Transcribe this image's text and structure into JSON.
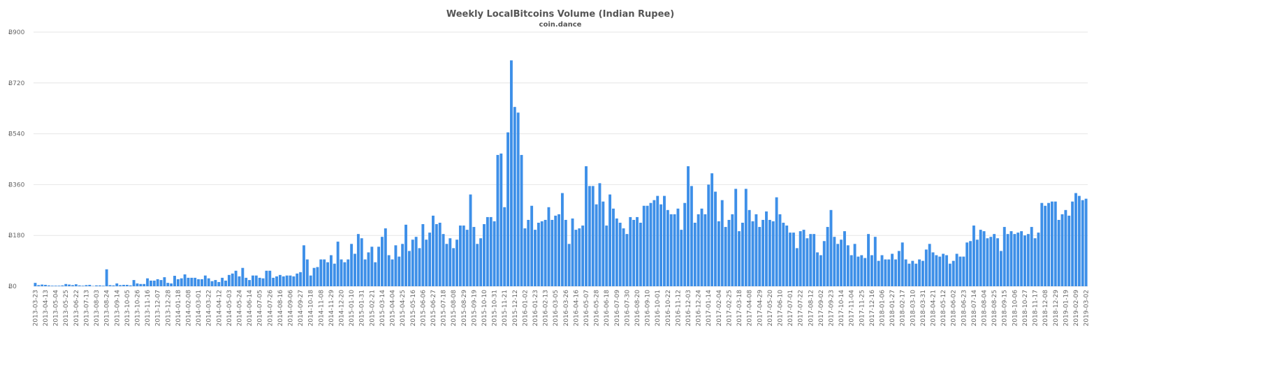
{
  "chart_data": {
    "type": "bar",
    "title": "Weekly LocalBitcoins Volume (Indian Rupee)",
    "subtitle": "coin.dance",
    "color": "#3d8fe8",
    "grid": true,
    "ylim": [
      0,
      900
    ],
    "yticks": [
      {
        "value": 0,
        "label": "Ƀ0"
      },
      {
        "value": 180,
        "label": "Ƀ180"
      },
      {
        "value": 360,
        "label": "Ƀ360"
      },
      {
        "value": 540,
        "label": "Ƀ540"
      },
      {
        "value": 720,
        "label": "Ƀ720"
      },
      {
        "value": 900,
        "label": "Ƀ900"
      }
    ],
    "categories": [
      "2013-03-23",
      null,
      null,
      "2013-04-13",
      null,
      null,
      "2013-05-04",
      null,
      null,
      "2013-05-25",
      null,
      null,
      "2013-06-22",
      null,
      null,
      "2013-07-13",
      null,
      null,
      "2013-08-03",
      null,
      null,
      "2013-08-24",
      null,
      null,
      "2013-09-14",
      null,
      null,
      "2013-10-05",
      null,
      null,
      "2013-10-26",
      null,
      null,
      "2013-11-16",
      null,
      null,
      "2013-12-07",
      null,
      null,
      "2013-12-28",
      null,
      null,
      "2014-01-18",
      null,
      null,
      "2014-02-08",
      null,
      null,
      "2014-03-01",
      null,
      null,
      "2014-03-22",
      null,
      null,
      "2014-04-12",
      null,
      null,
      "2014-05-03",
      null,
      null,
      "2014-05-24",
      null,
      null,
      "2014-06-14",
      null,
      null,
      "2014-07-05",
      null,
      null,
      "2014-07-26",
      null,
      null,
      "2014-08-16",
      null,
      null,
      "2014-09-06",
      null,
      null,
      "2014-09-27",
      null,
      null,
      "2014-10-18",
      null,
      null,
      "2014-11-08",
      null,
      null,
      "2014-11-29",
      null,
      null,
      "2014-12-20",
      null,
      null,
      "2015-01-10",
      null,
      null,
      "2015-01-31",
      null,
      null,
      "2015-02-21",
      null,
      null,
      "2015-03-14",
      null,
      null,
      "2015-04-04",
      null,
      null,
      "2015-04-25",
      null,
      null,
      "2015-05-16",
      null,
      null,
      "2015-06-06",
      null,
      null,
      "2015-06-27",
      null,
      null,
      "2015-07-18",
      null,
      null,
      "2015-08-08",
      null,
      null,
      "2015-08-29",
      null,
      null,
      "2015-09-19",
      null,
      null,
      "2015-10-10",
      null,
      null,
      "2015-10-31",
      null,
      null,
      "2015-11-21",
      null,
      null,
      "2015-12-12",
      null,
      null,
      "2016-01-02",
      null,
      null,
      "2016-01-23",
      null,
      null,
      "2016-02-13",
      null,
      null,
      "2016-03-05",
      null,
      null,
      "2016-03-26",
      null,
      null,
      "2016-04-16",
      null,
      null,
      "2016-05-07",
      null,
      null,
      "2016-05-28",
      null,
      null,
      "2016-06-18",
      null,
      null,
      "2016-07-09",
      null,
      null,
      "2016-07-30",
      null,
      null,
      "2016-08-20",
      null,
      null,
      "2016-09-10",
      null,
      null,
      "2016-10-01",
      null,
      null,
      "2016-10-22",
      null,
      null,
      "2016-11-12",
      null,
      null,
      "2016-12-03",
      null,
      null,
      "2016-12-24",
      null,
      null,
      "2017-01-14",
      null,
      null,
      "2017-02-04",
      null,
      null,
      "2017-02-25",
      null,
      null,
      "2017-03-18",
      null,
      null,
      "2017-04-08",
      null,
      null,
      "2017-04-29",
      null,
      null,
      "2017-05-20",
      null,
      null,
      "2017-06-10",
      null,
      null,
      "2017-07-01",
      null,
      null,
      "2017-07-22",
      null,
      null,
      "2017-08-12",
      null,
      null,
      "2017-09-02",
      null,
      null,
      "2017-09-23",
      null,
      null,
      "2017-10-14",
      null,
      null,
      "2017-11-04",
      null,
      null,
      "2017-11-25",
      null,
      null,
      "2017-12-16",
      null,
      null,
      "2018-01-06",
      null,
      null,
      "2018-01-27",
      null,
      null,
      "2018-02-17",
      null,
      null,
      "2018-03-10",
      null,
      null,
      "2018-03-31",
      null,
      null,
      "2018-04-21",
      null,
      null,
      "2018-05-12",
      null,
      null,
      "2018-06-02",
      null,
      null,
      "2018-06-23",
      null,
      null,
      "2018-07-14",
      null,
      null,
      "2018-08-04",
      null,
      null,
      "2018-08-25",
      null,
      null,
      "2018-09-15",
      null,
      null,
      "2018-10-06",
      null,
      null,
      "2018-10-27",
      null,
      null,
      "2018-11-17",
      null,
      null,
      "2018-12-08",
      null,
      null,
      "2018-12-29",
      null,
      null,
      "2019-01-19",
      null,
      null,
      "2019-02-09",
      null,
      null,
      "2019-03-02"
    ],
    "values": [
      12,
      4,
      6,
      5,
      3,
      2,
      2,
      2,
      3,
      8,
      6,
      4,
      7,
      3,
      2,
      4,
      5,
      1,
      3,
      3,
      2,
      60,
      4,
      3,
      10,
      4,
      5,
      5,
      3,
      22,
      10,
      8,
      8,
      28,
      20,
      20,
      25,
      22,
      32,
      12,
      10,
      37,
      25,
      28,
      42,
      30,
      30,
      30,
      25,
      25,
      38,
      28,
      18,
      22,
      15,
      30,
      20,
      40,
      45,
      55,
      35,
      65,
      30,
      22,
      38,
      38,
      30,
      28,
      55,
      55,
      30,
      35,
      40,
      35,
      38,
      38,
      35,
      45,
      50,
      145,
      95,
      38,
      65,
      68,
      95,
      95,
      85,
      110,
      80,
      158,
      95,
      85,
      95,
      150,
      115,
      185,
      170,
      95,
      120,
      140,
      85,
      140,
      175,
      205,
      110,
      95,
      145,
      105,
      150,
      218,
      125,
      165,
      175,
      135,
      220,
      165,
      190,
      250,
      220,
      225,
      185,
      150,
      170,
      135,
      165,
      215,
      215,
      200,
      325,
      210,
      150,
      170,
      220,
      245,
      245,
      230,
      465,
      470,
      280,
      545,
      800,
      635,
      615,
      465,
      205,
      235,
      285,
      200,
      225,
      230,
      235,
      280,
      235,
      250,
      255,
      330,
      235,
      150,
      240,
      200,
      205,
      215,
      425,
      355,
      355,
      290,
      365,
      300,
      215,
      325,
      275,
      240,
      225,
      205,
      185,
      245,
      235,
      245,
      225,
      285,
      285,
      295,
      305,
      320,
      290,
      320,
      270,
      255,
      255,
      275,
      200,
      295,
      425,
      355,
      225,
      255,
      275,
      255,
      360,
      400,
      335,
      230,
      305,
      210,
      235,
      255,
      345,
      195,
      225,
      345,
      270,
      230,
      255,
      210,
      235,
      265,
      235,
      230,
      315,
      255,
      225,
      215,
      190,
      190,
      135,
      195,
      200,
      170,
      185,
      185,
      120,
      110,
      160,
      210,
      270,
      175,
      150,
      165,
      195,
      145,
      110,
      150,
      105,
      110,
      100,
      185,
      110,
      175,
      90,
      110,
      95,
      95,
      115,
      95,
      125,
      155,
      95,
      80,
      90,
      80,
      95,
      90,
      130,
      150,
      120,
      110,
      105,
      115,
      110,
      80,
      90,
      115,
      105,
      105,
      155,
      160,
      215,
      165,
      200,
      195,
      170,
      175,
      185,
      170,
      125,
      210,
      185,
      195,
      185,
      190,
      195,
      180,
      185,
      210,
      170,
      190,
      295,
      285,
      295,
      300,
      300,
      235,
      255,
      270,
      250,
      300,
      330,
      320,
      305,
      310
    ]
  }
}
